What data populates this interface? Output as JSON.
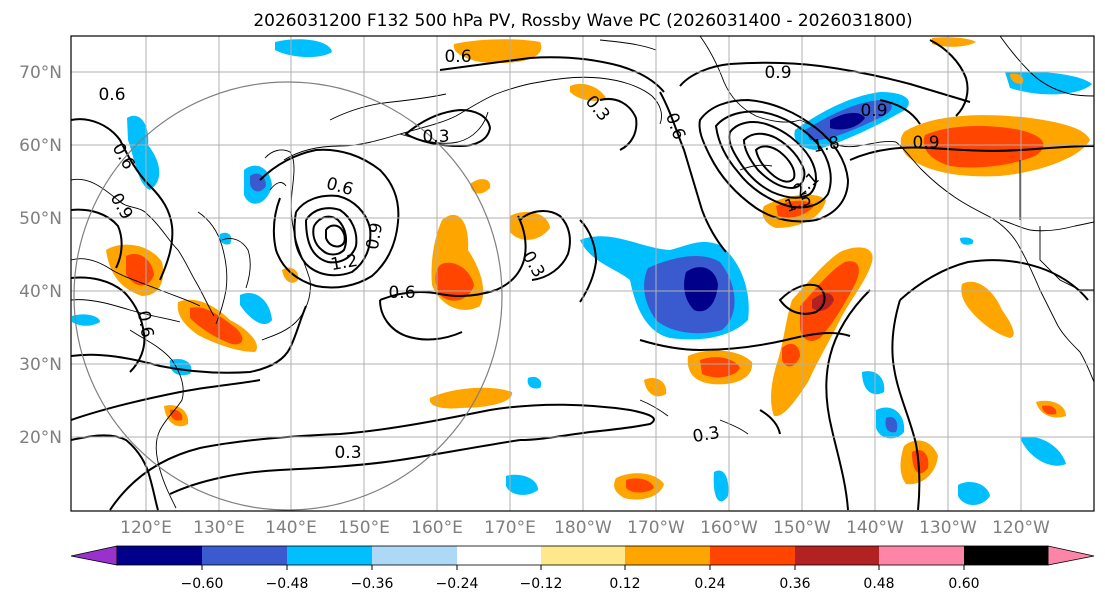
{
  "title": "2026031200 F132 500 hPa PV, Rossby Wave PC (2026031400 - 2026031800)",
  "latitude_labels": [
    "70°N",
    "60°N",
    "50°N",
    "40°N",
    "30°N",
    "20°N"
  ],
  "longitude_labels": [
    "120°E",
    "130°E",
    "140°E",
    "150°E",
    "160°E",
    "170°E",
    "180°W",
    "170°W",
    "160°W",
    "150°W",
    "140°W",
    "130°W",
    "120°W"
  ],
  "colorbar": {
    "tick_labels": [
      "−0.60",
      "−0.48",
      "−0.36",
      "−0.24",
      "−0.12",
      "0.12",
      "0.24",
      "0.36",
      "0.48",
      "0.60"
    ],
    "colors": [
      "#9932CC",
      "#00008B",
      "#3A5BD0",
      "#00BFFF",
      "#ADD8F6",
      "#FFFFFF",
      "#FFE88A",
      "#FFA500",
      "#FF4500",
      "#B22222",
      "#FF85A8"
    ]
  },
  "contour_labels": [
    "0.6",
    "0.3",
    "0.6",
    "0.9",
    "0.3",
    "0.3",
    "0.6",
    "0.9",
    "0.6",
    "0.6",
    "0.9",
    "1.2",
    "0.6",
    "0.3",
    "0.9",
    "0.9",
    "1.8",
    "2.1",
    "1.5",
    "0.3",
    "0.3",
    "0.6"
  ]
}
